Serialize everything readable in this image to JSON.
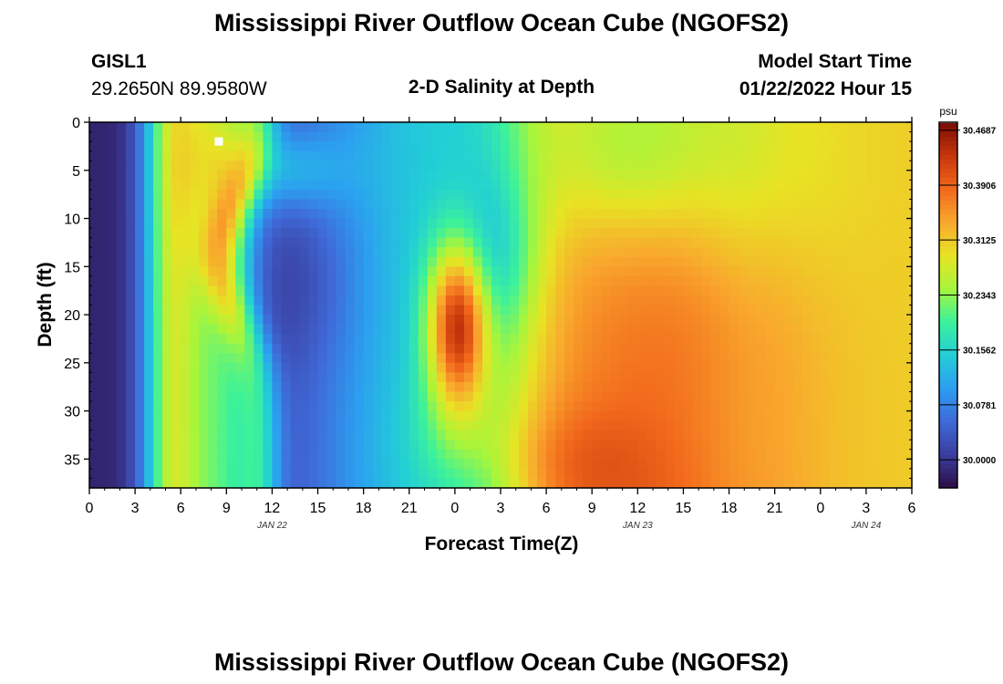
{
  "page": {
    "title_top": "Mississippi River Outflow Ocean Cube (NGOFS2)",
    "title_bottom": "Mississippi River Outflow Ocean Cube (NGOFS2)",
    "station": "GISL1",
    "coordinates": "29.2650N  89.9580W",
    "plot_title": "2-D Salinity at Depth",
    "model_start_label": "Model Start Time",
    "model_start_value": "01/22/2022 Hour 15"
  },
  "chart_data": {
    "type": "heatmap",
    "title": "2-D Salinity at Depth",
    "xlabel": "Forecast Time(Z)",
    "ylabel": "Depth (ft)",
    "x_range_hours": [
      0,
      54
    ],
    "ylim": [
      0,
      38
    ],
    "y_inverted": true,
    "x_tick_labels": [
      "0",
      "3",
      "6",
      "9",
      "12",
      "15",
      "18",
      "21",
      "0",
      "3",
      "6",
      "9",
      "12",
      "15",
      "18",
      "21",
      "0",
      "3",
      "6"
    ],
    "y_ticks": [
      0,
      5,
      10,
      15,
      20,
      25,
      30,
      35
    ],
    "date_labels": [
      {
        "text": "JAN 22",
        "hour": 12
      },
      {
        "text": "JAN 23",
        "hour": 36
      },
      {
        "text": "JAN 24",
        "hour": 51
      }
    ],
    "colorbar": {
      "unit": "psu",
      "ticks": [
        "30.4687",
        "30.3906",
        "30.3125",
        "30.2343",
        "30.1562",
        "30.0781",
        "30.0000"
      ],
      "min": 29.96,
      "max": 30.48,
      "colors": [
        "#2b0f48",
        "#3b3fa0",
        "#3f6ad8",
        "#2c9ff0",
        "#22cfd6",
        "#3df29a",
        "#a8f53b",
        "#e8e324",
        "#f9a82d",
        "#f2691c",
        "#c8370c",
        "#7a0c08"
      ]
    },
    "markers": [
      {
        "hour": 8.5,
        "depth": 2
      }
    ]
  }
}
